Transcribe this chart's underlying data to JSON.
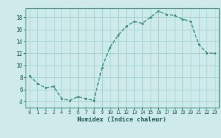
{
  "x": [
    0,
    1,
    2,
    3,
    4,
    5,
    6,
    7,
    8,
    9,
    10,
    11,
    12,
    13,
    14,
    15,
    16,
    17,
    18,
    19,
    20,
    21,
    22,
    23
  ],
  "y": [
    8.3,
    7.0,
    6.3,
    6.5,
    4.5,
    4.2,
    4.8,
    4.5,
    4.2,
    9.7,
    13.0,
    15.0,
    16.5,
    17.3,
    17.0,
    18.0,
    19.0,
    18.5,
    18.3,
    17.7,
    17.3,
    13.5,
    12.1,
    12.0
  ],
  "xlabel": "Humidex (Indice chaleur)",
  "xlim": [
    -0.5,
    23.5
  ],
  "ylim": [
    3.0,
    19.5
  ],
  "yticks": [
    4,
    6,
    8,
    10,
    12,
    14,
    16,
    18
  ],
  "xticks": [
    0,
    1,
    2,
    3,
    4,
    5,
    6,
    7,
    8,
    9,
    10,
    11,
    12,
    13,
    14,
    15,
    16,
    17,
    18,
    19,
    20,
    21,
    22,
    23
  ],
  "line_color": "#2d8a75",
  "bg_color": "#ceeaea",
  "grid_color": "#9ecece",
  "label_color": "#1a5555",
  "tick_color": "#1a5555",
  "spine_color": "#2d8a75"
}
